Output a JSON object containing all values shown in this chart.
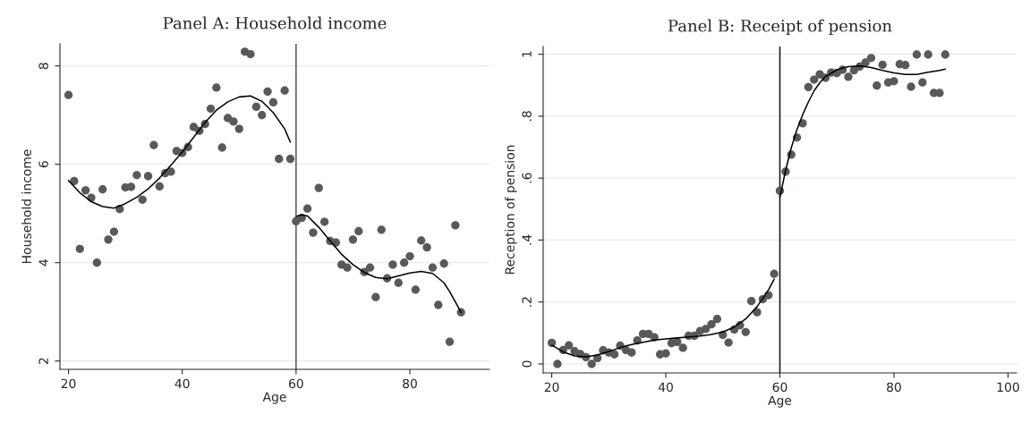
{
  "chart_data": [
    {
      "type": "scatter",
      "title": "Panel A: Household income",
      "xlabel": "Age",
      "ylabel": "Household income",
      "x": [
        20,
        21,
        22,
        23,
        24,
        25,
        26,
        27,
        28,
        29,
        30,
        31,
        32,
        33,
        34,
        35,
        36,
        37,
        38,
        39,
        40,
        41,
        42,
        43,
        44,
        45,
        46,
        47,
        48,
        49,
        50,
        51,
        52,
        53,
        54,
        55,
        56,
        57,
        58,
        59,
        60,
        61,
        62,
        63,
        64,
        65,
        66,
        67,
        68,
        69,
        70,
        71,
        72,
        73,
        74,
        75,
        76,
        77,
        78,
        79,
        80,
        81,
        82,
        83,
        84,
        85,
        86,
        87,
        88,
        89
      ],
      "series": [
        {
          "color": "#595959",
          "marker": "circle",
          "values": [
            7.41,
            5.66,
            4.28,
            5.47,
            5.32,
            4.0,
            5.49,
            4.47,
            4.63,
            5.09,
            5.53,
            5.54,
            5.78,
            5.28,
            5.76,
            6.39,
            5.55,
            5.82,
            5.85,
            6.27,
            6.23,
            6.35,
            6.76,
            6.68,
            6.82,
            7.13,
            7.56,
            6.34,
            6.94,
            6.87,
            6.72,
            8.29,
            8.24,
            7.17,
            7.0,
            7.48,
            7.26,
            6.11,
            7.5,
            6.11,
            4.84,
            4.91,
            5.1,
            4.61,
            5.52,
            4.83,
            4.44,
            4.41,
            3.96,
            3.9,
            4.47,
            4.64,
            3.81,
            3.9,
            3.3,
            4.67,
            3.68,
            3.96,
            3.59,
            4.0,
            4.13,
            3.45,
            4.45,
            4.31,
            3.9,
            3.14,
            3.98,
            2.39,
            4.76,
            2.99
          ]
        },
        {
          "type": "line",
          "color": "#000000",
          "line_style": "solid",
          "x": [
            20,
            22,
            24,
            26,
            28,
            30,
            32,
            34,
            36,
            38,
            40,
            42,
            44,
            46,
            48,
            50,
            52,
            54,
            56,
            58,
            59
          ],
          "values": [
            5.67,
            5.42,
            5.24,
            5.14,
            5.11,
            5.2,
            5.33,
            5.5,
            5.72,
            5.98,
            6.25,
            6.55,
            6.85,
            7.1,
            7.27,
            7.37,
            7.39,
            7.28,
            7.05,
            6.72,
            6.45
          ]
        },
        {
          "type": "line",
          "color": "#000000",
          "line_style": "solid",
          "x": [
            60,
            61,
            62,
            64,
            66,
            68,
            70,
            72,
            74,
            76,
            78,
            80,
            82,
            84,
            86,
            87,
            88,
            89
          ],
          "values": [
            4.94,
            4.97,
            4.95,
            4.72,
            4.44,
            4.17,
            3.96,
            3.8,
            3.7,
            3.67,
            3.73,
            3.79,
            3.82,
            3.78,
            3.59,
            3.41,
            3.2,
            2.99
          ]
        }
      ],
      "xlim": [
        18.5,
        94
      ],
      "xticks": [
        20,
        40,
        60,
        80
      ],
      "ylim": [
        1.83,
        8.45
      ],
      "yticks": [
        2,
        4,
        6,
        8
      ],
      "grid": "y",
      "legend": false,
      "ref_lines": [
        {
          "axis": "x",
          "value": 60,
          "color": "#555555"
        }
      ]
    },
    {
      "type": "scatter",
      "title": "Panel B: Receipt of pension",
      "xlabel": "Age",
      "ylabel": "Reception of pension",
      "x": [
        20,
        21,
        22,
        23,
        24,
        25,
        26,
        27,
        28,
        29,
        30,
        31,
        32,
        33,
        34,
        35,
        36,
        37,
        38,
        39,
        40,
        41,
        42,
        43,
        44,
        45,
        46,
        47,
        48,
        49,
        50,
        51,
        52,
        53,
        54,
        55,
        56,
        57,
        58,
        59,
        60,
        61,
        62,
        63,
        64,
        65,
        66,
        67,
        68,
        69,
        70,
        71,
        72,
        73,
        74,
        75,
        76,
        77,
        78,
        79,
        80,
        81,
        82,
        83,
        84,
        85,
        86,
        87,
        88,
        89
      ],
      "series": [
        {
          "color": "#595959",
          "marker": "circle",
          "values": [
            0.068,
            0.0,
            0.045,
            0.06,
            0.041,
            0.032,
            0.022,
            0.0,
            0.019,
            0.044,
            0.037,
            0.031,
            0.059,
            0.045,
            0.037,
            0.076,
            0.097,
            0.097,
            0.086,
            0.031,
            0.034,
            0.067,
            0.071,
            0.052,
            0.091,
            0.091,
            0.106,
            0.113,
            0.128,
            0.145,
            0.094,
            0.069,
            0.111,
            0.125,
            0.103,
            0.203,
            0.167,
            0.209,
            0.222,
            0.291,
            0.559,
            0.621,
            0.676,
            0.731,
            0.777,
            0.894,
            0.918,
            0.935,
            0.924,
            0.941,
            0.939,
            0.95,
            0.927,
            0.948,
            0.96,
            0.973,
            0.988,
            0.899,
            0.966,
            0.909,
            0.913,
            0.968,
            0.965,
            0.895,
            0.999,
            0.909,
            0.999,
            0.875,
            0.875,
            0.999
          ]
        },
        {
          "type": "line",
          "color": "#000000",
          "line_style": "solid",
          "x": [
            20,
            22,
            24,
            26,
            28,
            30,
            32,
            34,
            36,
            38,
            40,
            42,
            44,
            46,
            48,
            50,
            52,
            54,
            56,
            58,
            59
          ],
          "values": [
            0.061,
            0.039,
            0.026,
            0.023,
            0.029,
            0.04,
            0.053,
            0.063,
            0.07,
            0.077,
            0.081,
            0.084,
            0.087,
            0.09,
            0.095,
            0.103,
            0.119,
            0.145,
            0.185,
            0.239,
            0.274
          ]
        },
        {
          "type": "line",
          "color": "#000000",
          "line_style": "solid",
          "x": [
            60,
            61,
            62,
            63,
            64,
            65,
            66,
            67,
            68,
            70,
            72,
            74,
            76,
            78,
            80,
            82,
            84,
            86,
            88,
            89
          ],
          "values": [
            0.538,
            0.625,
            0.698,
            0.757,
            0.805,
            0.846,
            0.882,
            0.908,
            0.928,
            0.95,
            0.96,
            0.962,
            0.957,
            0.948,
            0.94,
            0.935,
            0.935,
            0.942,
            0.948,
            0.952
          ]
        }
      ],
      "xlim": [
        18.5,
        101.5
      ],
      "xticks": [
        20,
        40,
        60,
        80,
        100
      ],
      "ylim": [
        -0.029,
        1.025
      ],
      "yticks": [
        {
          "value": 0,
          "label": "0"
        },
        {
          "value": 0.2,
          "label": ".2"
        },
        {
          "value": 0.4,
          "label": ".4"
        },
        {
          "value": 0.6,
          "label": ".6"
        },
        {
          "value": 0.8,
          "label": ".8"
        },
        {
          "value": 1,
          "label": "1"
        }
      ],
      "grid": "y",
      "legend": false,
      "ref_lines": [
        {
          "axis": "x",
          "value": 60,
          "color": "#111111"
        }
      ]
    }
  ]
}
